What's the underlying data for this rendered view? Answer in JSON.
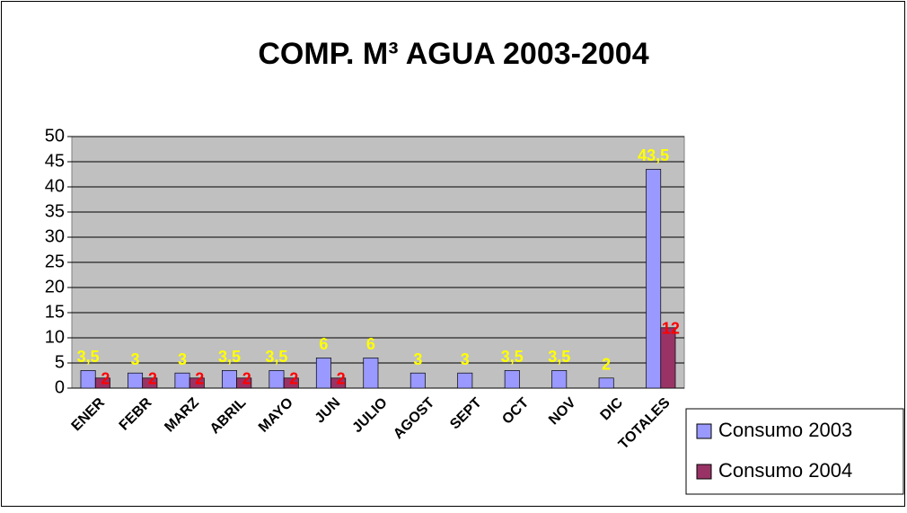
{
  "chart_data": {
    "type": "bar",
    "title": "COMP. M³ AGUA 2003-2004",
    "categories": [
      "ENER",
      "FEBR",
      "MARZ",
      "ABRIL",
      "MAYO",
      "JUN",
      "JULIO",
      "AGOST",
      "SEPT",
      "OCT",
      "NOV",
      "DIC",
      "TOTALES"
    ],
    "series": [
      {
        "name": "Consumo 2003",
        "color": "#9999ff",
        "label_color": "#ffff00",
        "values": [
          3.5,
          3,
          3,
          3.5,
          3.5,
          6,
          6,
          3,
          3,
          3.5,
          3.5,
          2,
          43.5
        ],
        "value_labels": [
          "3,5",
          "3",
          "3",
          "3,5",
          "3,5",
          "6",
          "6",
          "3",
          "3",
          "3,5",
          "3,5",
          "2",
          "43,5"
        ]
      },
      {
        "name": "Consumo 2004",
        "color": "#993366",
        "label_color": "#ff0000",
        "values": [
          2,
          2,
          2,
          2,
          2,
          2,
          null,
          null,
          null,
          null,
          null,
          null,
          12
        ],
        "value_labels": [
          "2",
          "2",
          "2",
          "2",
          "2",
          "2",
          null,
          null,
          null,
          null,
          null,
          null,
          "12"
        ]
      }
    ],
    "ylim": [
      0,
      50
    ],
    "yticks": [
      0,
      5,
      10,
      15,
      20,
      25,
      30,
      35,
      40,
      45,
      50
    ],
    "grid": true,
    "legend": "bottom-right"
  }
}
